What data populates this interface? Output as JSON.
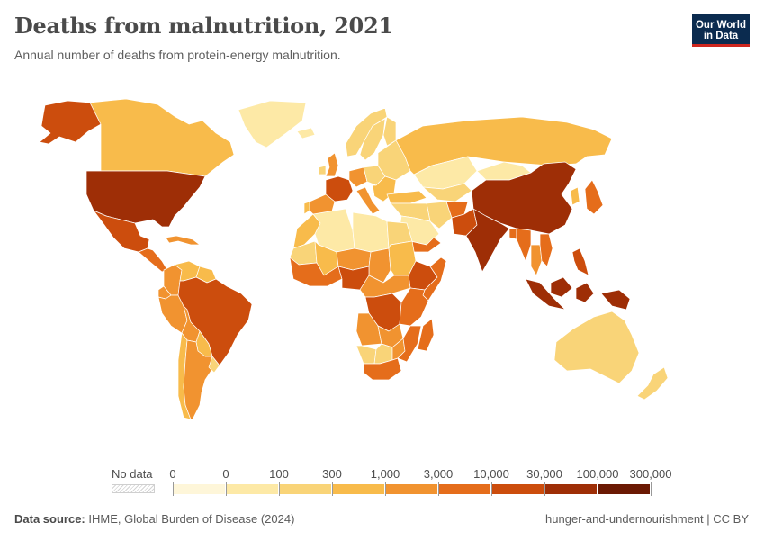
{
  "header": {
    "title": "Deaths from malnutrition, 2021",
    "subtitle": "Annual number of deaths from protein-energy malnutrition.",
    "logo_line1": "Our World",
    "logo_line2": "in Data"
  },
  "legend": {
    "no_data_label": "No data",
    "labels": [
      "0",
      "0",
      "100",
      "300",
      "1,000",
      "3,000",
      "10,000",
      "30,000",
      "100,000",
      "300,000"
    ],
    "colors": [
      "#fef6d9",
      "#fde9a6",
      "#f9d478",
      "#f8bb4b",
      "#f19330",
      "#e56d1b",
      "#cc4d0d",
      "#9e2e06",
      "#6b1903"
    ]
  },
  "footer": {
    "source_label": "Data source:",
    "source_text": "IHME, Global Burden of Disease (2024)",
    "right_text": "hunger-and-undernourishment | CC BY"
  },
  "map_data": {
    "no_data_color": "#ffffff",
    "border_color": "#ffffff",
    "regions": [
      {
        "name": "Alaska",
        "bin": 6
      },
      {
        "name": "Canada",
        "bin": 3
      },
      {
        "name": "Greenland",
        "bin": 1
      },
      {
        "name": "United States",
        "bin": 7
      },
      {
        "name": "Mexico",
        "bin": 6
      },
      {
        "name": "Central America",
        "bin": 5
      },
      {
        "name": "Caribbean",
        "bin": 4
      },
      {
        "name": "Colombia",
        "bin": 4
      },
      {
        "name": "Venezuela",
        "bin": 3
      },
      {
        "name": "Guianas",
        "bin": 3
      },
      {
        "name": "Ecuador",
        "bin": 4
      },
      {
        "name": "Peru",
        "bin": 4
      },
      {
        "name": "Brazil",
        "bin": 6
      },
      {
        "name": "Bolivia",
        "bin": 4
      },
      {
        "name": "Paraguay",
        "bin": 3
      },
      {
        "name": "Chile",
        "bin": 3
      },
      {
        "name": "Argentina",
        "bin": 4
      },
      {
        "name": "Uruguay",
        "bin": 2
      },
      {
        "name": "Iceland",
        "bin": 1
      },
      {
        "name": "Norway",
        "bin": 2
      },
      {
        "name": "Sweden",
        "bin": 2
      },
      {
        "name": "Finland",
        "bin": 2
      },
      {
        "name": "United Kingdom",
        "bin": 4
      },
      {
        "name": "Ireland",
        "bin": 2
      },
      {
        "name": "France",
        "bin": 6
      },
      {
        "name": "Spain",
        "bin": 4
      },
      {
        "name": "Portugal",
        "bin": 3
      },
      {
        "name": "Germany",
        "bin": 4
      },
      {
        "name": "Italy",
        "bin": 4
      },
      {
        "name": "Central Europe",
        "bin": 2
      },
      {
        "name": "Eastern Europe",
        "bin": 2
      },
      {
        "name": "Balkans",
        "bin": 3
      },
      {
        "name": "Russia",
        "bin": 3
      },
      {
        "name": "Turkey",
        "bin": 3
      },
      {
        "name": "Kazakhstan",
        "bin": 1
      },
      {
        "name": "Mongolia",
        "bin": 1
      },
      {
        "name": "Central Asia",
        "bin": 2
      },
      {
        "name": "Iran",
        "bin": 2
      },
      {
        "name": "Middle East",
        "bin": 2
      },
      {
        "name": "Saudi Arabia",
        "bin": 1
      },
      {
        "name": "Yemen",
        "bin": 5
      },
      {
        "name": "Afghanistan",
        "bin": 5
      },
      {
        "name": "Pakistan",
        "bin": 6
      },
      {
        "name": "India",
        "bin": 7
      },
      {
        "name": "Bangladesh",
        "bin": 5
      },
      {
        "name": "China",
        "bin": 7
      },
      {
        "name": "Korea",
        "bin": 3
      },
      {
        "name": "Japan",
        "bin": 5
      },
      {
        "name": "Myanmar",
        "bin": 5
      },
      {
        "name": "Thailand",
        "bin": 4
      },
      {
        "name": "Vietnam",
        "bin": 5
      },
      {
        "name": "Philippines",
        "bin": 6
      },
      {
        "name": "Indonesia",
        "bin": 7
      },
      {
        "name": "Papua New Guinea",
        "bin": 7
      },
      {
        "name": "Australia",
        "bin": 2
      },
      {
        "name": "New Zealand",
        "bin": 2
      },
      {
        "name": "Morocco",
        "bin": 3
      },
      {
        "name": "Algeria",
        "bin": 1
      },
      {
        "name": "Libya",
        "bin": 1
      },
      {
        "name": "Egypt",
        "bin": 2
      },
      {
        "name": "Mauritania",
        "bin": 2
      },
      {
        "name": "Mali",
        "bin": 3
      },
      {
        "name": "Niger",
        "bin": 4
      },
      {
        "name": "Chad",
        "bin": 4
      },
      {
        "name": "Sudan",
        "bin": 3
      },
      {
        "name": "West Africa",
        "bin": 5
      },
      {
        "name": "Nigeria",
        "bin": 6
      },
      {
        "name": "Ethiopia",
        "bin": 6
      },
      {
        "name": "Somalia",
        "bin": 5
      },
      {
        "name": "Central Africa",
        "bin": 4
      },
      {
        "name": "DR Congo",
        "bin": 6
      },
      {
        "name": "East Africa",
        "bin": 5
      },
      {
        "name": "Angola",
        "bin": 4
      },
      {
        "name": "Zambia",
        "bin": 4
      },
      {
        "name": "Namibia",
        "bin": 2
      },
      {
        "name": "Botswana",
        "bin": 2
      },
      {
        "name": "Zimbabwe",
        "bin": 4
      },
      {
        "name": "Mozambique",
        "bin": 5
      },
      {
        "name": "South Africa",
        "bin": 5
      },
      {
        "name": "Madagascar",
        "bin": 5
      }
    ]
  }
}
